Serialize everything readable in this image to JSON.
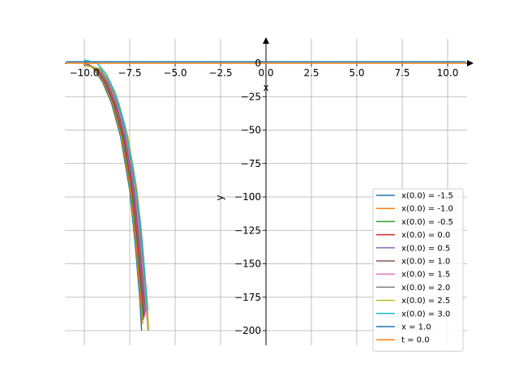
{
  "chart_data": {
    "type": "line",
    "title": "",
    "xlabel": "x",
    "ylabel": "y",
    "xlim": [
      -11.0,
      11.5
    ],
    "ylim": [
      -210,
      18
    ],
    "x_ticks": [
      -10.0,
      -7.5,
      -5.0,
      -2.5,
      0.0,
      2.5,
      5.0,
      7.5,
      10.0
    ],
    "x_tick_labels": [
      "−10.0",
      "−7.5",
      "−5.0",
      "−2.5",
      "0.0",
      "2.5",
      "5.0",
      "7.5",
      "10.0"
    ],
    "y_ticks": [
      0,
      -25,
      -50,
      -75,
      -100,
      -125,
      -150,
      -175,
      -200
    ],
    "y_tick_labels": [
      "0",
      "−25",
      "−50",
      "−75",
      "−100",
      "−125",
      "−150",
      "−175",
      "−200"
    ],
    "grid": true,
    "legend_position": "lower-right",
    "series": [
      {
        "name": "x(0.0) = -1.5",
        "color": "#1f77b4",
        "points": [
          [
            -10.0,
            1.7
          ],
          [
            -9.5,
            -4
          ],
          [
            -9.0,
            -14
          ],
          [
            -8.5,
            -30
          ],
          [
            -8.0,
            -55
          ],
          [
            -7.5,
            -95
          ],
          [
            -7.2,
            -135
          ],
          [
            -6.95,
            -175
          ],
          [
            -6.85,
            -200
          ]
        ]
      },
      {
        "name": "x(0.0) = -1.0",
        "color": "#ff7f0e",
        "points": [
          [
            -10.0,
            1.4
          ],
          [
            -9.45,
            -4
          ],
          [
            -8.95,
            -14
          ],
          [
            -8.45,
            -30
          ],
          [
            -7.95,
            -55
          ],
          [
            -7.45,
            -95
          ],
          [
            -7.15,
            -135
          ],
          [
            -6.9,
            -175
          ],
          [
            -6.8,
            -195
          ]
        ]
      },
      {
        "name": "x(0.0) = -0.5",
        "color": "#2ca02c",
        "points": [
          [
            -10.0,
            1.0
          ],
          [
            -9.4,
            -4
          ],
          [
            -8.9,
            -14
          ],
          [
            -8.4,
            -30
          ],
          [
            -7.9,
            -55
          ],
          [
            -7.4,
            -95
          ],
          [
            -7.1,
            -135
          ],
          [
            -6.85,
            -175
          ],
          [
            -6.75,
            -192
          ]
        ]
      },
      {
        "name": "x(0.0) = 0.0",
        "color": "#d62728",
        "points": [
          [
            -10.0,
            0.6
          ],
          [
            -9.35,
            -4
          ],
          [
            -8.85,
            -14
          ],
          [
            -8.35,
            -30
          ],
          [
            -7.85,
            -55
          ],
          [
            -7.35,
            -95
          ],
          [
            -7.05,
            -135
          ],
          [
            -6.8,
            -175
          ],
          [
            -6.7,
            -190
          ]
        ]
      },
      {
        "name": "x(0.0) = 0.5",
        "color": "#9467bd",
        "points": [
          [
            -10.0,
            0.2
          ],
          [
            -9.3,
            -4
          ],
          [
            -8.8,
            -14
          ],
          [
            -8.3,
            -30
          ],
          [
            -7.8,
            -55
          ],
          [
            -7.3,
            -95
          ],
          [
            -7.0,
            -135
          ],
          [
            -6.75,
            -175
          ],
          [
            -6.65,
            -188
          ]
        ]
      },
      {
        "name": "x(0.0) = 1.0",
        "color": "#8c564b",
        "points": [
          [
            -10.0,
            -0.3
          ],
          [
            -9.25,
            -4
          ],
          [
            -8.75,
            -14
          ],
          [
            -8.25,
            -30
          ],
          [
            -7.75,
            -55
          ],
          [
            -7.25,
            -95
          ],
          [
            -6.95,
            -135
          ],
          [
            -6.7,
            -175
          ],
          [
            -6.6,
            -186
          ]
        ]
      },
      {
        "name": "x(0.0) = 1.5",
        "color": "#e377c2",
        "points": [
          [
            -10.0,
            -0.8
          ],
          [
            -9.2,
            -4
          ],
          [
            -8.7,
            -14
          ],
          [
            -8.2,
            -30
          ],
          [
            -7.7,
            -55
          ],
          [
            -7.2,
            -95
          ],
          [
            -6.9,
            -135
          ],
          [
            -6.62,
            -178
          ],
          [
            -6.5,
            -200
          ]
        ]
      },
      {
        "name": "x(0.0) = 2.0",
        "color": "#7f7f7f",
        "points": [
          [
            -10.0,
            -1.3
          ],
          [
            -9.15,
            -4
          ],
          [
            -8.65,
            -14
          ],
          [
            -8.15,
            -30
          ],
          [
            -7.65,
            -55
          ],
          [
            -7.15,
            -95
          ],
          [
            -6.85,
            -135
          ],
          [
            -6.58,
            -178
          ],
          [
            -6.5,
            -192
          ]
        ]
      },
      {
        "name": "x(0.0) = 2.5",
        "color": "#bcbd22",
        "points": [
          [
            -10.0,
            -1.8
          ],
          [
            -9.1,
            -4
          ],
          [
            -8.6,
            -14
          ],
          [
            -8.1,
            -30
          ],
          [
            -7.6,
            -55
          ],
          [
            -7.1,
            -95
          ],
          [
            -6.8,
            -135
          ],
          [
            -6.55,
            -180
          ],
          [
            -6.45,
            -200
          ]
        ]
      },
      {
        "name": "x(0.0) = 3.0",
        "color": "#17becf",
        "points": [
          [
            -10.0,
            2.5
          ],
          [
            -9.3,
            0
          ],
          [
            -8.8,
            -8
          ],
          [
            -8.3,
            -22
          ],
          [
            -7.8,
            -45
          ],
          [
            -7.3,
            -80
          ],
          [
            -6.9,
            -120
          ],
          [
            -6.65,
            -160
          ],
          [
            -6.5,
            -185
          ]
        ]
      },
      {
        "name": "x = 1.0",
        "color": "#1f77b4",
        "points": [
          [
            -11.0,
            1.0
          ],
          [
            11.0,
            1.0
          ]
        ]
      },
      {
        "name": "t = 0.0",
        "color": "#ff7f0e",
        "points": [
          [
            -11.0,
            0.0
          ],
          [
            11.0,
            0.0
          ]
        ]
      }
    ]
  }
}
